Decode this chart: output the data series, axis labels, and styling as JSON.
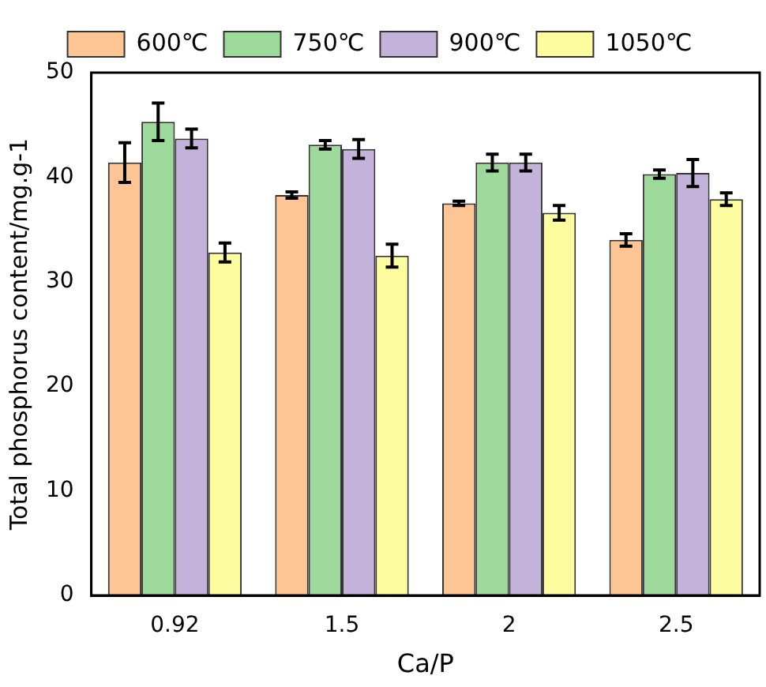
{
  "chart_data": {
    "type": "bar",
    "xlabel": "Ca/P",
    "ylabel": "Total phosphorus content/mg.g-1",
    "categories": [
      "0.92",
      "1.5",
      "2",
      "2.5"
    ],
    "series": [
      {
        "name": "600℃",
        "color": "#fdc593",
        "values": [
          41.4,
          38.3,
          37.5,
          34.0
        ],
        "errors": [
          1.9,
          0.3,
          0.2,
          0.6
        ]
      },
      {
        "name": "750℃",
        "color": "#9ed99c",
        "values": [
          45.3,
          43.1,
          41.4,
          40.3
        ],
        "errors": [
          1.8,
          0.4,
          0.8,
          0.4
        ]
      },
      {
        "name": "900℃",
        "color": "#c3b2da",
        "values": [
          43.7,
          42.7,
          41.4,
          40.4
        ],
        "errors": [
          0.9,
          0.9,
          0.8,
          1.3
        ]
      },
      {
        "name": "1050℃",
        "color": "#fdfc9e",
        "values": [
          32.8,
          32.5,
          36.6,
          37.9
        ],
        "errors": [
          0.9,
          1.1,
          0.7,
          0.6
        ]
      }
    ],
    "ylim": [
      0,
      50
    ],
    "yticks": [
      0,
      10,
      20,
      30,
      40,
      50
    ],
    "grid": false,
    "legend": "top"
  }
}
